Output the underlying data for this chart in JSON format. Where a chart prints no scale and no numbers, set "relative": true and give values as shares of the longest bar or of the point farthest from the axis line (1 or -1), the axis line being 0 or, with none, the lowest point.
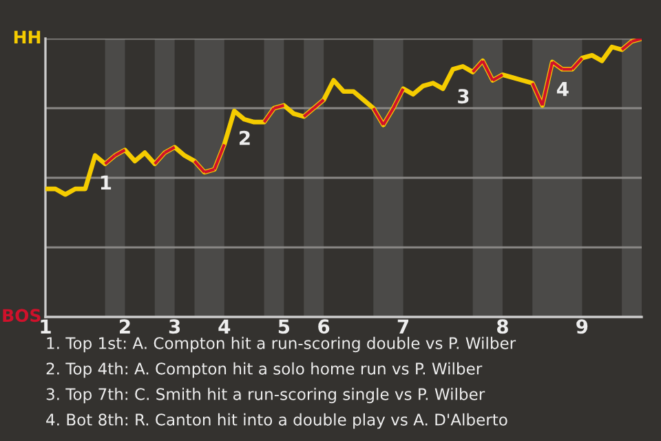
{
  "chart_data": {
    "type": "line",
    "relative": true,
    "categories": [
      "1",
      null,
      null,
      null,
      null,
      null,
      null,
      null,
      "2",
      null,
      null,
      null,
      null,
      "3",
      null,
      null,
      null,
      null,
      "4",
      null,
      null,
      null,
      null,
      null,
      "5",
      null,
      null,
      null,
      "6",
      null,
      null,
      null,
      null,
      null,
      null,
      null,
      "7",
      null,
      null,
      null,
      null,
      null,
      null,
      null,
      null,
      null,
      "8",
      null,
      null,
      null,
      null,
      null,
      null,
      null,
      "9",
      null,
      null,
      null,
      null,
      null,
      null
    ],
    "series": [
      {
        "color": "#f5cc00",
        "values": [
          0.46,
          0.46,
          0.44,
          0.46,
          0.46,
          0.58,
          0.55,
          0.58,
          0.6,
          0.56,
          0.59,
          0.55,
          0.59,
          0.61,
          0.58,
          0.56,
          0.52,
          0.53,
          0.62,
          0.74,
          0.71,
          0.7,
          0.7,
          0.75,
          0.76,
          0.73,
          0.72,
          0.75,
          0.78,
          0.85,
          0.81,
          0.81,
          0.78,
          0.75,
          0.69,
          0.75,
          0.82,
          0.8,
          0.83,
          0.84,
          0.82,
          0.89,
          0.9,
          0.88,
          0.92,
          0.85,
          0.87,
          0.86,
          0.85,
          0.84,
          0.76,
          0.916,
          0.89,
          0.89,
          0.93,
          0.94,
          0.92,
          0.97,
          0.96,
          0.99,
          1
        ],
        "colors": [
          "#f5cc00",
          "#f5cc00",
          "#f5cc00",
          "#f5cc00",
          "#f5cc00",
          "#f5cc00",
          "#f5cc00",
          "#d0112b",
          "#d0112b",
          "#f5cc00",
          "#f5cc00",
          "#f5cc00",
          "#d0112b",
          "#d0112b",
          "#f5cc00",
          "#f5cc00",
          "#d0112b",
          "#d0112b",
          "#d0112b",
          "#f5cc00",
          "#f5cc00",
          "#f5cc00",
          "#f5cc00",
          "#d0112b",
          "#d0112b",
          "#f5cc00",
          "#f5cc00",
          "#d0112b",
          "#d0112b",
          "#f5cc00",
          "#f5cc00",
          "#f5cc00",
          "#f5cc00",
          "#f5cc00",
          "#d0112b",
          "#d0112b",
          "#d0112b",
          "#f5cc00",
          "#f5cc00",
          "#f5cc00",
          "#f5cc00",
          "#f5cc00",
          "#f5cc00",
          "#f5cc00",
          "#d0112b",
          "#d0112b",
          "#d0112b",
          "#f5cc00",
          "#f5cc00",
          "#f5cc00",
          "#d0112b",
          "#d0112b",
          "#d0112b",
          "#d0112b",
          "#d0112b",
          "#f5cc00",
          "#f5cc00",
          "#f5cc00",
          "#f5cc00",
          "#d0112b",
          "#d0112b"
        ]
      }
    ],
    "grid": "y",
    "marker": "none",
    "line_style": "solid",
    "legend": false,
    "annotations": [
      {
        "text": "1",
        "y": 0.58
      },
      {
        "text": "2",
        "y": 0.74
      },
      {
        "text": "3",
        "y": 0.89
      },
      {
        "text": "4",
        "y": 0.916
      },
      "HH",
      "BOS",
      "1. Top 1st: A. Compton hit a run-scoring double vs P. Wilber",
      "2. Top 4th: A. Compton hit a solo home run vs P. Wilber",
      "3. Top 7th: C. Smith hit a run-scoring single vs P. Wilber",
      "4. Bot 8th: R. Canton hit into a double play vs A. D'Alberto"
    ]
  }
}
